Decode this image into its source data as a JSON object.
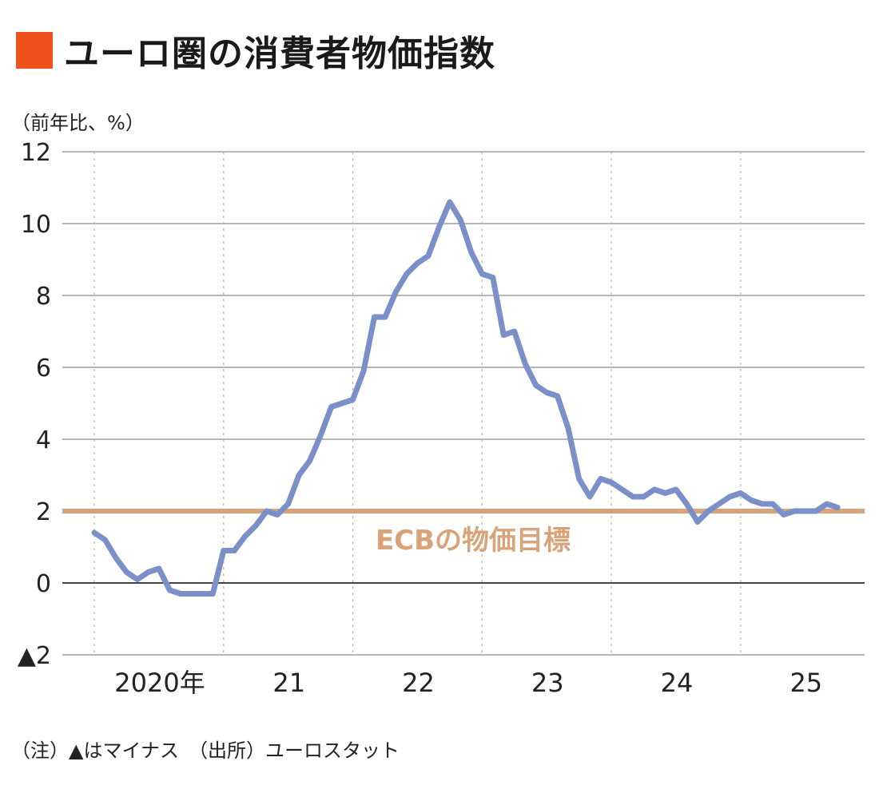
{
  "title": "ユーロ圏の消費者物価指数",
  "colors": {
    "title_marker": "#f0521e",
    "series": "#7b8fc8",
    "target": "#d9a37a",
    "grid": "#8a8a8a",
    "zero": "#444444"
  },
  "unit_label": "（前年比、%）",
  "footnote": "（注）▲はマイナス　（出所）ユーロスタット",
  "chart_data": {
    "type": "line",
    "title": "ユーロ圏の消費者物価指数",
    "ylabel": "（前年比、%）",
    "ylim": [
      -2,
      12
    ],
    "y_ticks": [
      12,
      10,
      8,
      6,
      4,
      2,
      0,
      -2
    ],
    "y_tick_labels": [
      "12",
      "10",
      "8",
      "6",
      "4",
      "2",
      "0",
      "▲2"
    ],
    "x_start": "2020-01",
    "x_tick_labels": [
      "2020年",
      "21",
      "22",
      "23",
      "24",
      "25"
    ],
    "grid": true,
    "series": [
      {
        "values": [
          1.4,
          1.2,
          0.7,
          0.3,
          0.1,
          0.3,
          0.4,
          -0.2,
          -0.3,
          -0.3,
          -0.3,
          -0.3,
          0.9,
          0.9,
          1.3,
          1.6,
          2.0,
          1.9,
          2.2,
          3.0,
          3.4,
          4.1,
          4.9,
          5.0,
          5.1,
          5.9,
          7.4,
          7.4,
          8.1,
          8.6,
          8.9,
          9.1,
          9.9,
          10.6,
          10.1,
          9.2,
          8.6,
          8.5,
          6.9,
          7.0,
          6.1,
          5.5,
          5.3,
          5.2,
          4.3,
          2.9,
          2.4,
          2.9,
          2.8,
          2.6,
          2.4,
          2.4,
          2.6,
          2.5,
          2.6,
          2.2,
          1.7,
          2.0,
          2.2,
          2.4,
          2.5,
          2.3,
          2.2,
          2.2,
          1.9,
          2.0,
          2.0,
          2.0,
          2.2,
          2.1
        ]
      }
    ],
    "target_line": {
      "value": 2,
      "label": "ECBの物価目標"
    }
  }
}
